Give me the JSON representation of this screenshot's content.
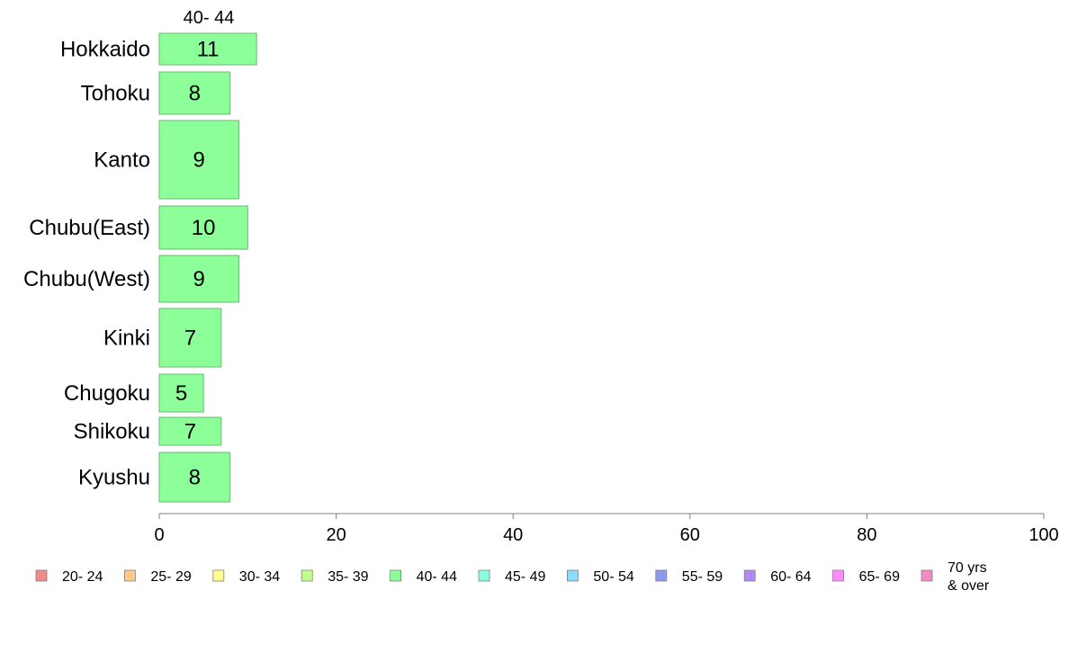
{
  "chart_data": {
    "type": "bar",
    "orientation": "horizontal",
    "series_header": "40- 44",
    "categories": [
      "Hokkaido",
      "Tohoku",
      "Kanto",
      "Chubu(East)",
      "Chubu(West)",
      "Kinki",
      "Chugoku",
      "Shikoku",
      "Kyushu"
    ],
    "values": [
      11,
      8,
      9,
      10,
      9,
      7,
      5,
      7,
      8
    ],
    "bar_color": "#8cff99",
    "bar_stroke": "#6ab873",
    "xlim": [
      0,
      100
    ],
    "xticks": [
      0,
      20,
      40,
      60,
      80,
      100
    ],
    "grid": false,
    "legend_position": "bottom",
    "legend": [
      {
        "label": "20- 24",
        "color": "#f28a8a"
      },
      {
        "label": "25- 29",
        "color": "#ffc98a"
      },
      {
        "label": "30- 34",
        "color": "#ffff8a"
      },
      {
        "label": "35- 39",
        "color": "#c2ff8a"
      },
      {
        "label": "40- 44",
        "color": "#8cff99"
      },
      {
        "label": "45- 49",
        "color": "#8affe0"
      },
      {
        "label": "50- 54",
        "color": "#8adcff"
      },
      {
        "label": "55- 59",
        "color": "#8a99f2"
      },
      {
        "label": "60- 64",
        "color": "#b08af2"
      },
      {
        "label": "65- 69",
        "color": "#ff8aff"
      },
      {
        "label": "70 yrs\n& over",
        "color": "#f28ac8"
      }
    ]
  }
}
